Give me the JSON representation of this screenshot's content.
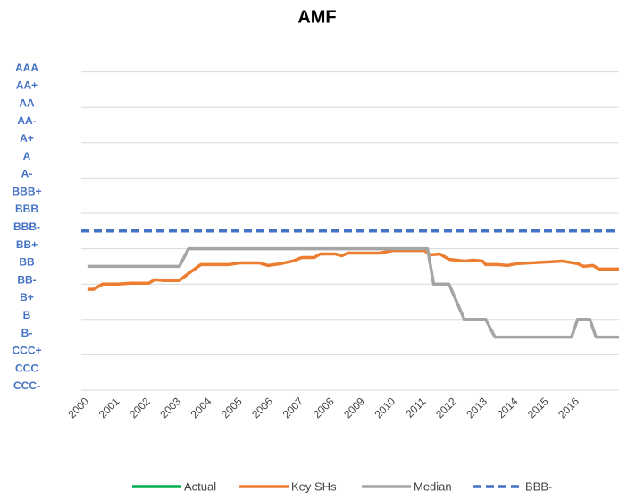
{
  "chart_data": {
    "type": "line",
    "title": "AMF",
    "xlim": [
      1999.8,
      2017.35
    ],
    "xticks": [
      2000,
      2001,
      2002,
      2003,
      2004,
      2005,
      2006,
      2007,
      2008,
      2009,
      2010,
      2011,
      2012,
      2013,
      2014,
      2015,
      2016
    ],
    "ylim": [
      1,
      19
    ],
    "yticks": [
      {
        "value": 1,
        "label": "CCC-"
      },
      {
        "value": 2,
        "label": "CCC"
      },
      {
        "value": 3,
        "label": "CCC+"
      },
      {
        "value": 4,
        "label": "B-"
      },
      {
        "value": 5,
        "label": "B"
      },
      {
        "value": 6,
        "label": "B+"
      },
      {
        "value": 7,
        "label": "BB-"
      },
      {
        "value": 8,
        "label": "BB"
      },
      {
        "value": 9,
        "label": "BB+"
      },
      {
        "value": 10,
        "label": "BBB-"
      },
      {
        "value": 11,
        "label": "BBB"
      },
      {
        "value": 12,
        "label": "BBB+"
      },
      {
        "value": 13,
        "label": "A-"
      },
      {
        "value": 14,
        "label": "A"
      },
      {
        "value": 15,
        "label": "A+"
      },
      {
        "value": 16,
        "label": "AA-"
      },
      {
        "value": 17,
        "label": "AA"
      },
      {
        "value": 18,
        "label": "AA+"
      },
      {
        "value": 19,
        "label": "AAA"
      }
    ],
    "grid": true,
    "series": [
      {
        "name": "Actual",
        "color": "#00b050",
        "x": [],
        "values": []
      },
      {
        "name": "Key SHs",
        "color": "#ed7d31",
        "x": [
          2000,
          2000.2,
          2000.5,
          2001,
          2001.4,
          2002,
          2002.2,
          2002.5,
          2003,
          2003.3,
          2003.7,
          2004,
          2004.6,
          2005,
          2005.6,
          2005.9,
          2006.3,
          2006.7,
          2007,
          2007.4,
          2007.6,
          2008.1,
          2008.3,
          2008.5,
          2009,
          2009.5,
          2010,
          2011,
          2011.2,
          2011.5,
          2011.8,
          2012.3,
          2012.6,
          2012.9,
          2013,
          2013.4,
          2013.7,
          2014,
          2014.5,
          2015,
          2015.5,
          2016,
          2016.2,
          2016.5,
          2016.7,
          2017.35
        ],
        "values": [
          6.7,
          6.7,
          7.0,
          7.0,
          7.05,
          7.05,
          7.25,
          7.2,
          7.2,
          7.6,
          8.1,
          8.1,
          8.1,
          8.2,
          8.2,
          8.05,
          8.15,
          8.3,
          8.5,
          8.5,
          8.7,
          8.7,
          8.6,
          8.75,
          8.75,
          8.75,
          8.9,
          8.9,
          8.65,
          8.7,
          8.4,
          8.3,
          8.35,
          8.3,
          8.1,
          8.1,
          8.05,
          8.15,
          8.2,
          8.25,
          8.3,
          8.15,
          8.0,
          8.05,
          7.85,
          7.85
        ]
      },
      {
        "name": "Median",
        "color": "#a5a5a5",
        "x": [
          2000,
          2003,
          2003.3,
          2011.1,
          2011.3,
          2011.8,
          2012.3,
          2013,
          2013.3,
          2015.8,
          2016,
          2016.4,
          2016.6,
          2017.35
        ],
        "values": [
          8,
          8,
          9,
          9,
          7,
          7,
          5,
          5,
          4,
          4,
          5,
          5,
          4,
          4
        ]
      },
      {
        "name": "BBB-",
        "color": "#4472c4",
        "dashed": true,
        "x": [
          1999.8,
          2017.35
        ],
        "values": [
          10,
          10
        ]
      }
    ]
  }
}
